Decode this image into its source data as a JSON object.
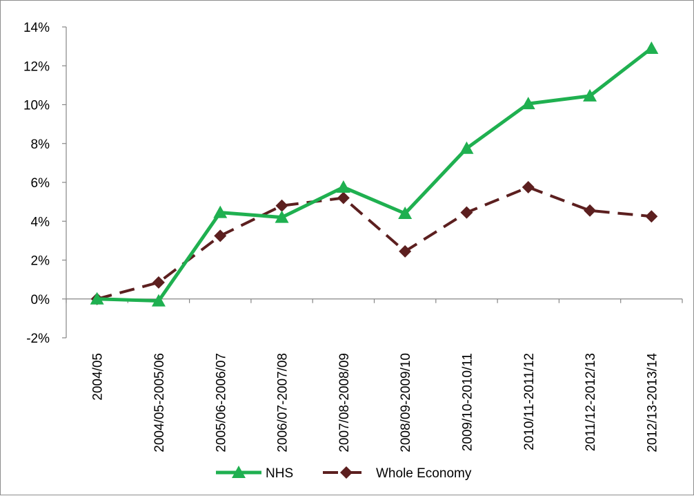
{
  "chart_data": {
    "type": "line",
    "title": "",
    "xlabel": "",
    "ylabel": "",
    "categories": [
      "2004/05",
      "2004/05-2005/06",
      "2005/06-2006/07",
      "2006/07-2007/08",
      "2007/08-2008/09",
      "2008/09-2009/10",
      "2009/10-2010/11",
      "2010/11-2011/12",
      "2011/12-2012/13",
      "2012/13-2013/14"
    ],
    "ylim": [
      -2,
      14
    ],
    "yticks": [
      -2,
      0,
      2,
      4,
      6,
      8,
      10,
      12,
      14
    ],
    "ytick_labels": [
      "-2%",
      "0%",
      "2%",
      "4%",
      "6%",
      "8%",
      "10%",
      "12%",
      "14%"
    ],
    "grid": false,
    "legend_position": "bottom",
    "series": [
      {
        "name": "NHS",
        "values": [
          0.0,
          -0.1,
          4.45,
          4.2,
          5.75,
          4.4,
          7.75,
          10.05,
          10.45,
          12.9
        ],
        "color": "#1fb050",
        "marker": "triangle",
        "line_style": "solid"
      },
      {
        "name": "Whole Economy",
        "values": [
          0.0,
          0.85,
          3.25,
          4.8,
          5.2,
          2.45,
          4.45,
          5.75,
          4.55,
          4.25
        ],
        "color": "#5c1f1f",
        "marker": "diamond",
        "line_style": "dashed"
      }
    ]
  }
}
